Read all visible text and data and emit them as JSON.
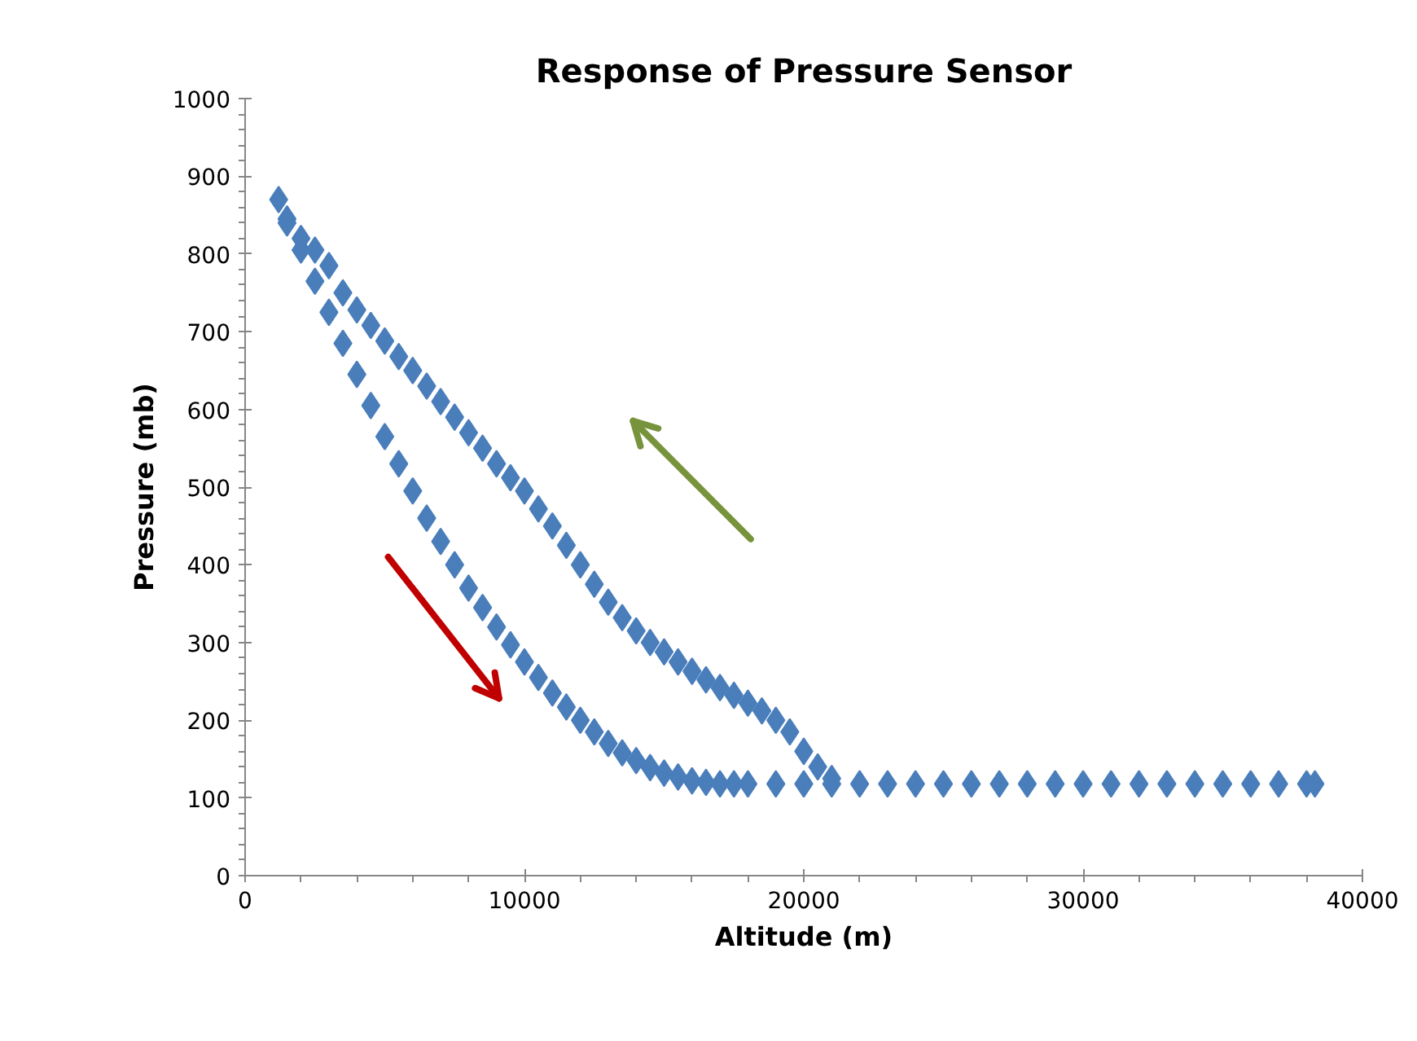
{
  "chart_data": {
    "type": "scatter",
    "title": "Response of Pressure Sensor",
    "xlabel": "Altitude (m)",
    "ylabel": "Pressure (mb)",
    "x": [
      1200,
      1500,
      2000,
      2500,
      3000,
      3500,
      4000,
      4500,
      5000,
      5500,
      6000,
      6500,
      7000,
      7500,
      8000,
      8500,
      9000,
      9500,
      10000,
      10500,
      11000,
      11500,
      12000,
      12500,
      13000,
      13500,
      14000,
      14500,
      15000,
      15500,
      16000,
      16500,
      17000,
      17500,
      18000,
      19000,
      20000,
      21000,
      22000,
      23000,
      24000,
      25000,
      26000,
      27000,
      28000,
      29000,
      30000,
      31000,
      32000,
      33000,
      34000,
      35000,
      36000,
      37000,
      38000,
      38300,
      21000,
      20500,
      20000,
      19500,
      19000,
      18500,
      18000,
      17500,
      17000,
      16500,
      16000,
      15500,
      15000,
      14500,
      14000,
      13500,
      13000,
      12500,
      12000,
      11500,
      11000,
      10500,
      10000,
      9500,
      9000,
      8500,
      8000,
      7500,
      7000,
      6500,
      6000,
      5500,
      5000,
      4500,
      4000,
      3500,
      3000,
      2500,
      2000,
      1500
    ],
    "series": [
      {
        "color": "#4a7ebb",
        "values": [
          870,
          845,
          805,
          765,
          725,
          685,
          645,
          605,
          565,
          530,
          495,
          460,
          430,
          400,
          370,
          345,
          320,
          297,
          275,
          255,
          235,
          217,
          200,
          185,
          170,
          158,
          148,
          139,
          132,
          127,
          122,
          120,
          118,
          118,
          118,
          118,
          118,
          118,
          118,
          118,
          118,
          118,
          118,
          118,
          118,
          118,
          118,
          118,
          118,
          118,
          118,
          118,
          118,
          118,
          118,
          118,
          125,
          140,
          160,
          185,
          200,
          212,
          222,
          232,
          242,
          252,
          263,
          275,
          288,
          300,
          315,
          332,
          352,
          375,
          400,
          425,
          450,
          472,
          495,
          512,
          530,
          550,
          570,
          590,
          610,
          630,
          650,
          668,
          688,
          708,
          728,
          750,
          785,
          805,
          820,
          840
        ]
      }
    ],
    "marker": "diamond",
    "xlim": [
      0,
      40000
    ],
    "ylim": [
      0,
      1000
    ],
    "xticks": [
      0,
      10000,
      20000,
      30000,
      40000
    ],
    "yticks": [
      0,
      100,
      200,
      300,
      400,
      500,
      600,
      700,
      800,
      900,
      1000
    ],
    "grid": false
  }
}
